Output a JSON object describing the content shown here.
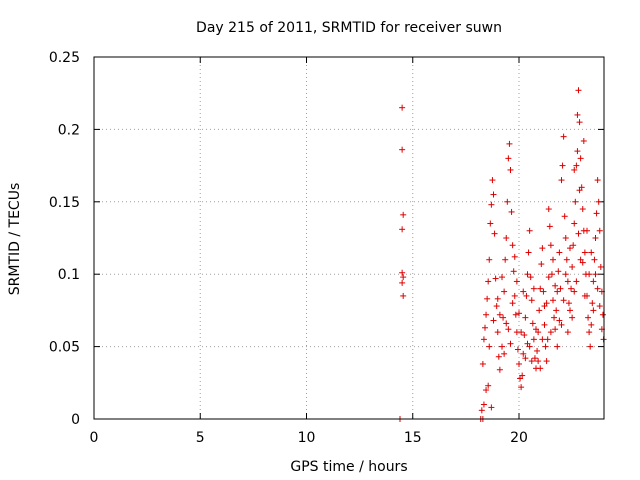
{
  "chart_data": {
    "type": "scatter",
    "title": "Day 215 of 2011, SRMTID for receiver suwn",
    "xlabel": "GPS time / hours",
    "ylabel": "SRMTID / TECUs",
    "xlim": [
      0,
      24
    ],
    "ylim": [
      0,
      0.25
    ],
    "xticks": [
      0,
      5,
      10,
      15,
      20
    ],
    "xtick_labels": [
      "0",
      "5",
      "10",
      "15",
      "20"
    ],
    "yticks": [
      0,
      0.05,
      0.1,
      0.15,
      0.2,
      0.25
    ],
    "ytick_labels": [
      "0",
      "0.05",
      "0.1",
      "0.15",
      "0.2",
      "0.25"
    ],
    "grid": true,
    "marker": "plus",
    "color": "#dd0000",
    "series": [
      {
        "name": "SRMTID",
        "points": [
          [
            14.4,
            0.0
          ],
          [
            14.4,
            0.0
          ],
          [
            14.5,
            0.215
          ],
          [
            14.5,
            0.186
          ],
          [
            14.55,
            0.141
          ],
          [
            14.5,
            0.131
          ],
          [
            14.5,
            0.101
          ],
          [
            14.55,
            0.098
          ],
          [
            14.5,
            0.094
          ],
          [
            14.55,
            0.085
          ],
          [
            18.2,
            0.0
          ],
          [
            18.3,
            0.0
          ],
          [
            18.25,
            0.006
          ],
          [
            18.35,
            0.01
          ],
          [
            18.45,
            0.02
          ],
          [
            18.55,
            0.023
          ],
          [
            18.7,
            0.008
          ],
          [
            18.3,
            0.038
          ],
          [
            18.35,
            0.055
          ],
          [
            18.4,
            0.063
          ],
          [
            18.45,
            0.072
          ],
          [
            18.5,
            0.083
          ],
          [
            18.55,
            0.095
          ],
          [
            18.6,
            0.11
          ],
          [
            18.65,
            0.135
          ],
          [
            18.7,
            0.148
          ],
          [
            18.75,
            0.165
          ],
          [
            18.8,
            0.155
          ],
          [
            18.85,
            0.128
          ],
          [
            18.9,
            0.097
          ],
          [
            18.95,
            0.078
          ],
          [
            19.0,
            0.06
          ],
          [
            19.05,
            0.043
          ],
          [
            19.1,
            0.034
          ],
          [
            19.2,
            0.05
          ],
          [
            19.25,
            0.07
          ],
          [
            19.3,
            0.088
          ],
          [
            19.35,
            0.11
          ],
          [
            19.4,
            0.125
          ],
          [
            19.45,
            0.15
          ],
          [
            19.5,
            0.18
          ],
          [
            19.55,
            0.19
          ],
          [
            19.6,
            0.172
          ],
          [
            19.65,
            0.143
          ],
          [
            19.7,
            0.12
          ],
          [
            19.75,
            0.102
          ],
          [
            19.8,
            0.085
          ],
          [
            19.85,
            0.072
          ],
          [
            19.9,
            0.06
          ],
          [
            19.95,
            0.048
          ],
          [
            20.0,
            0.038
          ],
          [
            20.05,
            0.028
          ],
          [
            20.1,
            0.022
          ],
          [
            20.15,
            0.03
          ],
          [
            20.2,
            0.045
          ],
          [
            20.25,
            0.058
          ],
          [
            20.3,
            0.07
          ],
          [
            20.35,
            0.085
          ],
          [
            20.4,
            0.1
          ],
          [
            20.45,
            0.115
          ],
          [
            20.5,
            0.13
          ],
          [
            20.55,
            0.098
          ],
          [
            20.6,
            0.082
          ],
          [
            20.65,
            0.066
          ],
          [
            20.7,
            0.055
          ],
          [
            20.75,
            0.042
          ],
          [
            20.8,
            0.035
          ],
          [
            20.85,
            0.047
          ],
          [
            20.9,
            0.06
          ],
          [
            20.95,
            0.075
          ],
          [
            21.0,
            0.09
          ],
          [
            21.05,
            0.107
          ],
          [
            21.1,
            0.118
          ],
          [
            21.15,
            0.088
          ],
          [
            21.2,
            0.065
          ],
          [
            21.25,
            0.05
          ],
          [
            21.3,
            0.04
          ],
          [
            21.35,
            0.055
          ],
          [
            21.4,
            0.145
          ],
          [
            21.45,
            0.133
          ],
          [
            21.5,
            0.12
          ],
          [
            21.55,
            0.1
          ],
          [
            21.6,
            0.082
          ],
          [
            21.65,
            0.07
          ],
          [
            21.7,
            0.062
          ],
          [
            21.75,
            0.075
          ],
          [
            21.8,
            0.088
          ],
          [
            21.85,
            0.102
          ],
          [
            21.9,
            0.115
          ],
          [
            21.95,
            0.09
          ],
          [
            22.0,
            0.165
          ],
          [
            22.05,
            0.175
          ],
          [
            22.1,
            0.195
          ],
          [
            22.15,
            0.14
          ],
          [
            22.2,
            0.125
          ],
          [
            22.25,
            0.11
          ],
          [
            22.3,
            0.095
          ],
          [
            22.35,
            0.08
          ],
          [
            22.4,
            0.075
          ],
          [
            22.45,
            0.09
          ],
          [
            22.5,
            0.105
          ],
          [
            22.55,
            0.12
          ],
          [
            22.6,
            0.135
          ],
          [
            22.65,
            0.15
          ],
          [
            22.7,
            0.175
          ],
          [
            22.75,
            0.21
          ],
          [
            22.8,
            0.227
          ],
          [
            22.85,
            0.205
          ],
          [
            22.9,
            0.18
          ],
          [
            22.95,
            0.16
          ],
          [
            23.0,
            0.145
          ],
          [
            23.05,
            0.13
          ],
          [
            23.1,
            0.115
          ],
          [
            23.15,
            0.1
          ],
          [
            23.2,
            0.085
          ],
          [
            23.25,
            0.07
          ],
          [
            23.3,
            0.06
          ],
          [
            23.35,
            0.05
          ],
          [
            23.4,
            0.065
          ],
          [
            23.45,
            0.08
          ],
          [
            23.5,
            0.095
          ],
          [
            23.55,
            0.11
          ],
          [
            23.6,
            0.125
          ],
          [
            23.65,
            0.142
          ],
          [
            23.7,
            0.165
          ],
          [
            23.75,
            0.15
          ],
          [
            23.8,
            0.13
          ],
          [
            23.85,
            0.105
          ],
          [
            23.9,
            0.088
          ],
          [
            23.95,
            0.072
          ],
          [
            23.98,
            0.055
          ],
          [
            19.1,
            0.072
          ],
          [
            19.3,
            0.045
          ],
          [
            19.5,
            0.062
          ],
          [
            19.7,
            0.08
          ],
          [
            19.9,
            0.095
          ],
          [
            20.1,
            0.06
          ],
          [
            20.3,
            0.042
          ],
          [
            20.5,
            0.05
          ],
          [
            20.7,
            0.09
          ],
          [
            20.9,
            0.04
          ],
          [
            21.1,
            0.055
          ],
          [
            21.3,
            0.08
          ],
          [
            21.5,
            0.06
          ],
          [
            21.7,
            0.092
          ],
          [
            21.9,
            0.068
          ],
          [
            22.1,
            0.082
          ],
          [
            22.3,
            0.06
          ],
          [
            22.5,
            0.07
          ],
          [
            22.7,
            0.095
          ],
          [
            22.9,
            0.11
          ],
          [
            23.1,
            0.085
          ],
          [
            23.3,
            0.1
          ],
          [
            23.5,
            0.075
          ],
          [
            23.7,
            0.09
          ],
          [
            18.6,
            0.05
          ],
          [
            18.8,
            0.068
          ],
          [
            19.0,
            0.083
          ],
          [
            19.2,
            0.098
          ],
          [
            19.4,
            0.066
          ],
          [
            19.6,
            0.052
          ],
          [
            19.8,
            0.112
          ],
          [
            20.0,
            0.073
          ],
          [
            20.2,
            0.088
          ],
          [
            20.4,
            0.052
          ],
          [
            20.6,
            0.04
          ],
          [
            20.8,
            0.062
          ],
          [
            21.0,
            0.035
          ],
          [
            21.2,
            0.078
          ],
          [
            21.4,
            0.098
          ],
          [
            21.6,
            0.11
          ],
          [
            21.8,
            0.05
          ],
          [
            22.0,
            0.065
          ],
          [
            22.2,
            0.1
          ],
          [
            22.4,
            0.118
          ],
          [
            22.6,
            0.088
          ],
          [
            22.8,
            0.128
          ],
          [
            23.0,
            0.108
          ],
          [
            23.2,
            0.13
          ],
          [
            23.4,
            0.115
          ],
          [
            23.6,
            0.1
          ],
          [
            23.8,
            0.078
          ],
          [
            23.9,
            0.062
          ],
          [
            22.6,
            0.172
          ],
          [
            22.75,
            0.185
          ],
          [
            22.85,
            0.158
          ],
          [
            23.05,
            0.192
          ]
        ]
      }
    ]
  }
}
